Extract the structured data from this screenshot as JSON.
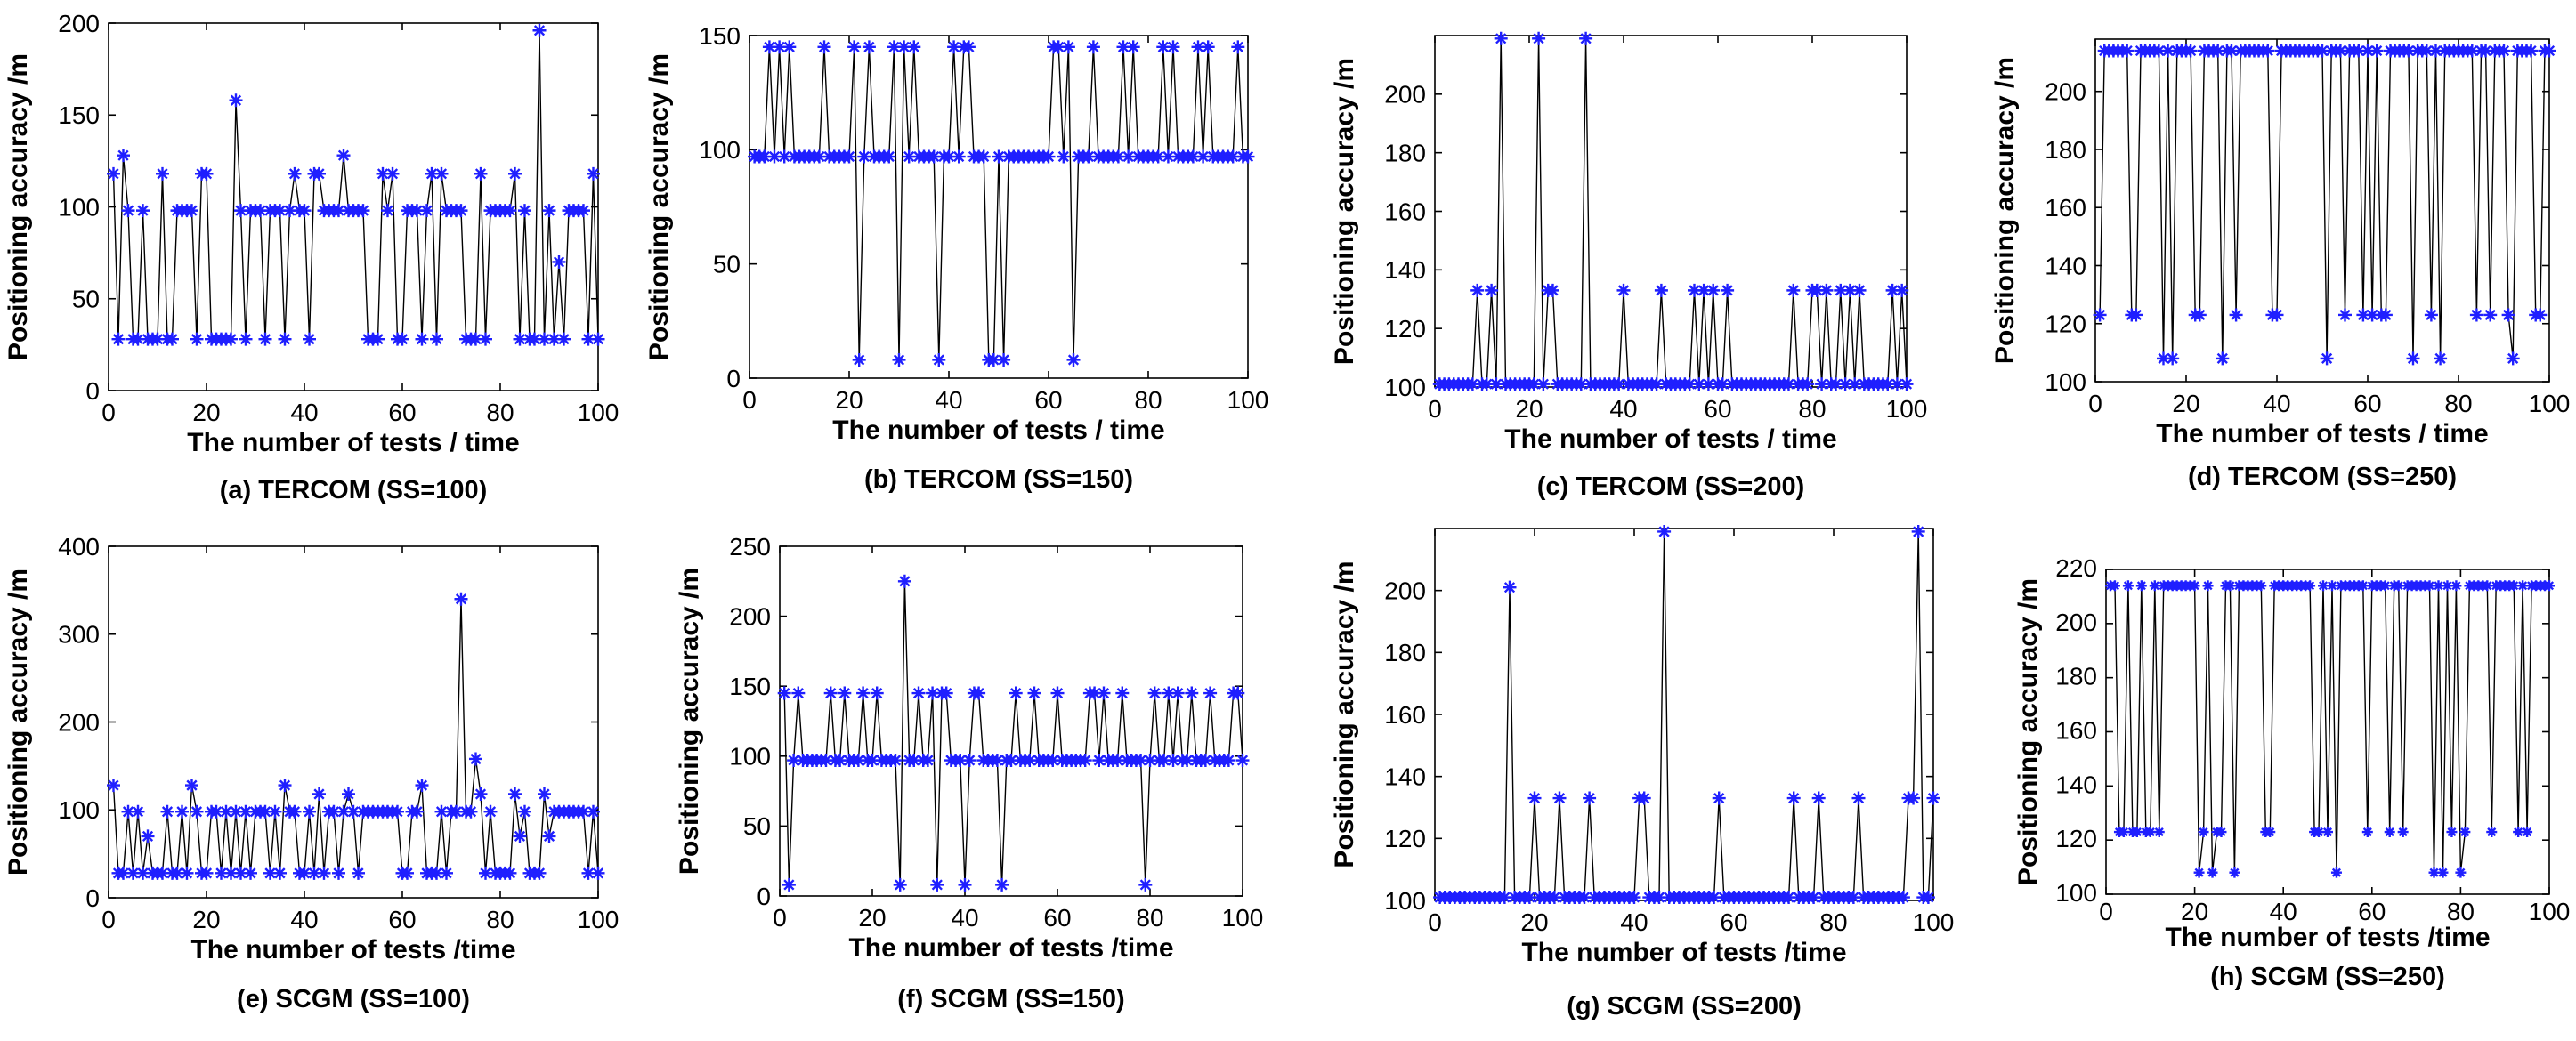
{
  "figure": {
    "marker_color": "#1f1fff",
    "line_color": "#000000"
  },
  "chart_data": [
    {
      "type": "line",
      "caption": "(a) TERCOM (SS=100)",
      "xlabel": "The number of tests / time",
      "ylabel": "Positioning accuracy /m",
      "xlim": [
        0,
        100
      ],
      "ylim": [
        0,
        200
      ],
      "xticks": [
        0,
        20,
        40,
        60,
        80,
        100
      ],
      "yticks": [
        0,
        50,
        100,
        150,
        200
      ],
      "series": [
        {
          "name": "TERCOM SS=100",
          "x_start": 1,
          "x_step": 1,
          "values": [
            118,
            28,
            128,
            98,
            28,
            28,
            98,
            28,
            28,
            28,
            118,
            28,
            28,
            98,
            98,
            98,
            98,
            28,
            118,
            118,
            28,
            28,
            28,
            28,
            28,
            158,
            98,
            28,
            98,
            98,
            98,
            28,
            98,
            98,
            98,
            28,
            98,
            118,
            98,
            98,
            28,
            118,
            118,
            98,
            98,
            98,
            98,
            128,
            98,
            98,
            98,
            98,
            28,
            28,
            28,
            118,
            98,
            118,
            28,
            28,
            98,
            98,
            98,
            28,
            98,
            118,
            28,
            118,
            98,
            98,
            98,
            98,
            28,
            28,
            28,
            118,
            28,
            98,
            98,
            98,
            98,
            98,
            118,
            28,
            98,
            28,
            28,
            196,
            28,
            98,
            28,
            70,
            28,
            98,
            98,
            98,
            98,
            28,
            118,
            28
          ]
        }
      ]
    },
    {
      "type": "line",
      "caption": "(b) TERCOM (SS=150)",
      "xlabel": "The number of tests / time",
      "ylabel": "Positioning accuracy /m",
      "xlim": [
        0,
        100
      ],
      "ylim": [
        0,
        150
      ],
      "xticks": [
        0,
        20,
        40,
        60,
        80,
        100
      ],
      "yticks": [
        0,
        50,
        100,
        150
      ],
      "series": [
        {
          "name": "TERCOM SS=150",
          "x_start": 1,
          "x_step": 1,
          "values": [
            97,
            97,
            97,
            145,
            97,
            145,
            97,
            145,
            97,
            97,
            97,
            97,
            97,
            97,
            145,
            97,
            97,
            97,
            97,
            97,
            145,
            8,
            97,
            145,
            97,
            97,
            97,
            97,
            145,
            8,
            145,
            97,
            145,
            97,
            97,
            97,
            97,
            8,
            97,
            97,
            145,
            97,
            145,
            145,
            97,
            97,
            97,
            8,
            8,
            97,
            8,
            97,
            97,
            97,
            97,
            97,
            97,
            97,
            97,
            97,
            145,
            145,
            97,
            145,
            8,
            97,
            97,
            97,
            145,
            97,
            97,
            97,
            97,
            97,
            145,
            97,
            145,
            97,
            97,
            97,
            97,
            97,
            145,
            97,
            145,
            97,
            97,
            97,
            97,
            145,
            97,
            145,
            97,
            97,
            97,
            97,
            97,
            145,
            97,
            97
          ]
        }
      ]
    },
    {
      "type": "line",
      "caption": "(c) TERCOM (SS=200)",
      "xlabel": "The number of tests / time",
      "ylabel": "Positioning accuracy /m",
      "xlim": [
        0,
        100
      ],
      "ylim": [
        100,
        220
      ],
      "xticks": [
        0,
        20,
        40,
        60,
        80,
        100
      ],
      "yticks": [
        100,
        120,
        140,
        160,
        180,
        200
      ],
      "series": [
        {
          "name": "TERCOM SS=200",
          "x_start": 1,
          "x_step": 1,
          "values": [
            101,
            101,
            101,
            101,
            101,
            101,
            101,
            101,
            133,
            101,
            101,
            133,
            101,
            219,
            101,
            101,
            101,
            101,
            101,
            101,
            101,
            219,
            101,
            133,
            133,
            101,
            101,
            101,
            101,
            101,
            101,
            219,
            101,
            101,
            101,
            101,
            101,
            101,
            101,
            133,
            101,
            101,
            101,
            101,
            101,
            101,
            101,
            133,
            101,
            101,
            101,
            101,
            101,
            101,
            133,
            101,
            133,
            101,
            133,
            101,
            101,
            133,
            101,
            101,
            101,
            101,
            101,
            101,
            101,
            101,
            101,
            101,
            101,
            101,
            101,
            133,
            101,
            101,
            101,
            133,
            133,
            101,
            133,
            101,
            101,
            133,
            101,
            133,
            101,
            133,
            101,
            101,
            101,
            101,
            101,
            101,
            133,
            101,
            133,
            101
          ]
        }
      ]
    },
    {
      "type": "line",
      "caption": "(d) TERCOM (SS=250)",
      "xlabel": "The number of tests / time",
      "ylabel": "Positioning accuracy /m",
      "xlim": [
        0,
        100
      ],
      "ylim": [
        100,
        218
      ],
      "xticks": [
        0,
        20,
        40,
        60,
        80,
        100
      ],
      "yticks": [
        100,
        120,
        140,
        160,
        180,
        200
      ],
      "series": [
        {
          "name": "TERCOM SS=250",
          "x_start": 1,
          "x_step": 1,
          "values": [
            123,
            214,
            214,
            214,
            214,
            214,
            214,
            123,
            123,
            214,
            214,
            214,
            214,
            214,
            108,
            214,
            108,
            214,
            214,
            214,
            214,
            123,
            123,
            214,
            214,
            214,
            214,
            108,
            214,
            214,
            123,
            214,
            214,
            214,
            214,
            214,
            214,
            214,
            123,
            123,
            214,
            214,
            214,
            214,
            214,
            214,
            214,
            214,
            214,
            214,
            108,
            214,
            214,
            214,
            123,
            214,
            214,
            214,
            123,
            214,
            123,
            214,
            123,
            123,
            214,
            214,
            214,
            214,
            214,
            108,
            214,
            214,
            214,
            123,
            214,
            108,
            214,
            214,
            214,
            214,
            214,
            214,
            214,
            123,
            214,
            214,
            123,
            214,
            214,
            214,
            123,
            108,
            214,
            214,
            214,
            214,
            123,
            123,
            214,
            214
          ]
        }
      ]
    },
    {
      "type": "line",
      "caption": "(e) SCGM (SS=100)",
      "xlabel": "The number of tests /time",
      "ylabel": "Positioning accuracy /m",
      "xlim": [
        0,
        100
      ],
      "ylim": [
        0,
        400
      ],
      "xticks": [
        0,
        20,
        40,
        60,
        80,
        100
      ],
      "yticks": [
        0,
        100,
        200,
        300,
        400
      ],
      "series": [
        {
          "name": "SCGM SS=100",
          "x_start": 1,
          "x_step": 1,
          "values": [
            128,
            28,
            28,
            98,
            28,
            98,
            28,
            70,
            28,
            28,
            28,
            98,
            28,
            28,
            98,
            28,
            128,
            98,
            28,
            28,
            98,
            98,
            28,
            98,
            28,
            98,
            28,
            98,
            28,
            98,
            98,
            98,
            28,
            98,
            28,
            128,
            98,
            98,
            28,
            28,
            98,
            28,
            118,
            28,
            98,
            98,
            28,
            98,
            118,
            98,
            28,
            98,
            98,
            98,
            98,
            98,
            98,
            98,
            98,
            28,
            28,
            98,
            98,
            128,
            28,
            28,
            28,
            98,
            28,
            98,
            98,
            340,
            98,
            98,
            158,
            118,
            28,
            98,
            28,
            28,
            28,
            28,
            118,
            70,
            98,
            28,
            28,
            28,
            118,
            70,
            98,
            98,
            98,
            98,
            98,
            98,
            98,
            28,
            98,
            28
          ]
        }
      ]
    },
    {
      "type": "line",
      "caption": "(f) SCGM (SS=150)",
      "xlabel": "The number of tests /time",
      "ylabel": "Positioning accuracy /m",
      "xlim": [
        0,
        100
      ],
      "ylim": [
        0,
        250
      ],
      "xticks": [
        0,
        20,
        40,
        60,
        80,
        100
      ],
      "yticks": [
        0,
        50,
        100,
        150,
        200,
        250
      ],
      "series": [
        {
          "name": "SCGM SS=150",
          "x_start": 1,
          "x_step": 1,
          "values": [
            145,
            8,
            97,
            145,
            97,
            97,
            97,
            97,
            97,
            97,
            145,
            97,
            97,
            145,
            97,
            97,
            97,
            145,
            97,
            97,
            145,
            97,
            97,
            97,
            97,
            8,
            225,
            97,
            97,
            145,
            97,
            97,
            145,
            8,
            145,
            145,
            97,
            97,
            97,
            8,
            97,
            145,
            145,
            97,
            97,
            97,
            97,
            8,
            97,
            97,
            145,
            97,
            97,
            97,
            145,
            97,
            97,
            97,
            97,
            145,
            97,
            97,
            97,
            97,
            97,
            97,
            145,
            145,
            97,
            145,
            97,
            97,
            97,
            145,
            97,
            97,
            97,
            97,
            8,
            97,
            145,
            97,
            97,
            145,
            97,
            145,
            97,
            97,
            145,
            97,
            97,
            97,
            145,
            97,
            97,
            97,
            97,
            145,
            145,
            97
          ]
        }
      ]
    },
    {
      "type": "line",
      "caption": "(g) SCGM (SS=200)",
      "xlabel": "The number of tests /time",
      "ylabel": "Positioning accuracy /m",
      "xlim": [
        0,
        100
      ],
      "ylim": [
        100,
        220
      ],
      "xticks": [
        0,
        20,
        40,
        60,
        80,
        100
      ],
      "yticks": [
        100,
        120,
        140,
        160,
        180,
        200
      ],
      "series": [
        {
          "name": "SCGM SS=200",
          "x_start": 1,
          "x_step": 1,
          "values": [
            101,
            101,
            101,
            101,
            101,
            101,
            101,
            101,
            101,
            101,
            101,
            101,
            101,
            101,
            201,
            101,
            101,
            101,
            101,
            133,
            101,
            101,
            101,
            101,
            133,
            101,
            101,
            101,
            101,
            101,
            133,
            101,
            101,
            101,
            101,
            101,
            101,
            101,
            101,
            101,
            133,
            133,
            101,
            101,
            101,
            219,
            101,
            101,
            101,
            101,
            101,
            101,
            101,
            101,
            101,
            101,
            133,
            101,
            101,
            101,
            101,
            101,
            101,
            101,
            101,
            101,
            101,
            101,
            101,
            101,
            101,
            133,
            101,
            101,
            101,
            101,
            133,
            101,
            101,
            101,
            101,
            101,
            101,
            101,
            133,
            101,
            101,
            101,
            101,
            101,
            101,
            101,
            101,
            101,
            133,
            133,
            219,
            101,
            101,
            133
          ]
        }
      ]
    },
    {
      "type": "line",
      "caption": "(h) SCGM (SS=250)",
      "xlabel": "The number of tests /time",
      "ylabel": "Positioning accuracy /m",
      "xlim": [
        0,
        100
      ],
      "ylim": [
        100,
        220
      ],
      "xticks": [
        0,
        20,
        40,
        60,
        80,
        100
      ],
      "yticks": [
        100,
        120,
        140,
        160,
        180,
        200,
        220
      ],
      "series": [
        {
          "name": "SCGM SS=250",
          "x_start": 1,
          "x_step": 1,
          "values": [
            214,
            214,
            123,
            123,
            214,
            123,
            123,
            214,
            123,
            123,
            214,
            123,
            214,
            214,
            214,
            214,
            214,
            214,
            214,
            214,
            108,
            123,
            214,
            108,
            123,
            123,
            214,
            214,
            108,
            214,
            214,
            214,
            214,
            214,
            214,
            123,
            123,
            214,
            214,
            214,
            214,
            214,
            214,
            214,
            214,
            214,
            123,
            123,
            214,
            123,
            214,
            108,
            214,
            214,
            214,
            214,
            214,
            214,
            123,
            214,
            214,
            214,
            214,
            123,
            214,
            214,
            123,
            214,
            214,
            214,
            214,
            214,
            214,
            108,
            214,
            108,
            214,
            123,
            214,
            108,
            123,
            214,
            214,
            214,
            214,
            214,
            123,
            214,
            214,
            214,
            214,
            214,
            123,
            214,
            123,
            214,
            214,
            214,
            214,
            214
          ]
        }
      ]
    }
  ]
}
